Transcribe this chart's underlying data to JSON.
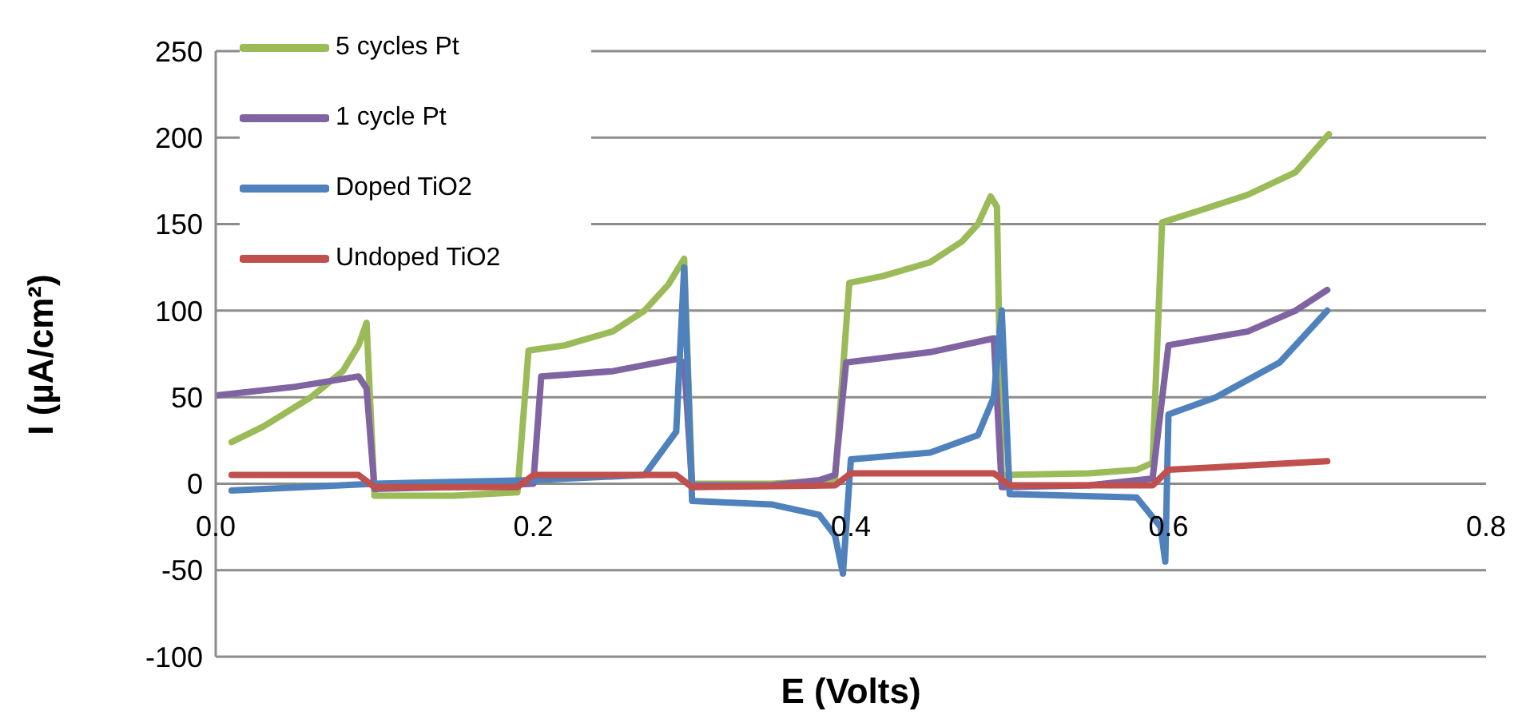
{
  "chart_data": {
    "type": "line",
    "xlabel": "E (Volts)",
    "ylabel": "I (µA/cm²)",
    "xlim": [
      0,
      0.8
    ],
    "xticks": [
      {
        "value": 0,
        "label": "0.0"
      },
      0.2,
      0.4,
      0.6,
      0.8
    ],
    "ylim": [
      -100,
      250
    ],
    "yticks": [
      -100,
      -50,
      0,
      50,
      100,
      150,
      200,
      250
    ],
    "grid": "y",
    "legend": "top left",
    "line_style": "solid",
    "series": [
      {
        "name": "5 cycles Pt",
        "color": "#9bbb59",
        "x": [
          0.01,
          0.03,
          0.06,
          0.08,
          0.09,
          0.095,
          0.1,
          0.15,
          0.19,
          0.197,
          0.22,
          0.25,
          0.27,
          0.285,
          0.295,
          0.3,
          0.35,
          0.39,
          0.399,
          0.42,
          0.45,
          0.47,
          0.48,
          0.488,
          0.492,
          0.495,
          0.55,
          0.58,
          0.59,
          0.596,
          0.62,
          0.65,
          0.68,
          0.701
        ],
        "values": [
          24,
          33,
          50,
          65,
          80,
          93,
          -7,
          -7,
          -5,
          77,
          80,
          88,
          100,
          115,
          130,
          0,
          0,
          2,
          116,
          120,
          128,
          140,
          150,
          166,
          160,
          5,
          6,
          8,
          12,
          151,
          158,
          167,
          180,
          202
        ]
      },
      {
        "name": "1 cycle Pt",
        "color": "#8064a2",
        "x": [
          0.0,
          0.05,
          0.09,
          0.095,
          0.1,
          0.15,
          0.2,
          0.205,
          0.25,
          0.29,
          0.295,
          0.3,
          0.35,
          0.38,
          0.39,
          0.397,
          0.45,
          0.49,
          0.495,
          0.55,
          0.59,
          0.6,
          0.65,
          0.68,
          0.7
        ],
        "values": [
          51,
          56,
          62,
          55,
          -3,
          -2,
          0,
          62,
          65,
          72,
          70,
          -1,
          -1,
          2,
          5,
          70,
          76,
          84,
          -2,
          -1,
          3,
          80,
          88,
          100,
          112
        ]
      },
      {
        "name": "Doped TiO2",
        "color": "#4f81bd",
        "x": [
          0.01,
          0.1,
          0.2,
          0.27,
          0.29,
          0.295,
          0.3,
          0.35,
          0.38,
          0.39,
          0.395,
          0.4,
          0.45,
          0.48,
          0.49,
          0.495,
          0.5,
          0.58,
          0.595,
          0.598,
          0.6,
          0.63,
          0.67,
          0.7
        ],
        "values": [
          -4,
          0,
          2,
          5,
          30,
          125,
          -10,
          -12,
          -18,
          -30,
          -52,
          14,
          18,
          28,
          50,
          100,
          -6,
          -8,
          -25,
          -45,
          40,
          50,
          70,
          100
        ]
      },
      {
        "name": "Undoped TiO2",
        "color": "#c0504d",
        "x": [
          0.01,
          0.09,
          0.1,
          0.19,
          0.2,
          0.29,
          0.3,
          0.39,
          0.4,
          0.49,
          0.5,
          0.59,
          0.6,
          0.7
        ],
        "values": [
          5,
          5,
          -2,
          -2,
          5,
          5,
          -2,
          -1,
          6,
          6,
          -1,
          -1,
          8,
          13
        ]
      }
    ]
  }
}
